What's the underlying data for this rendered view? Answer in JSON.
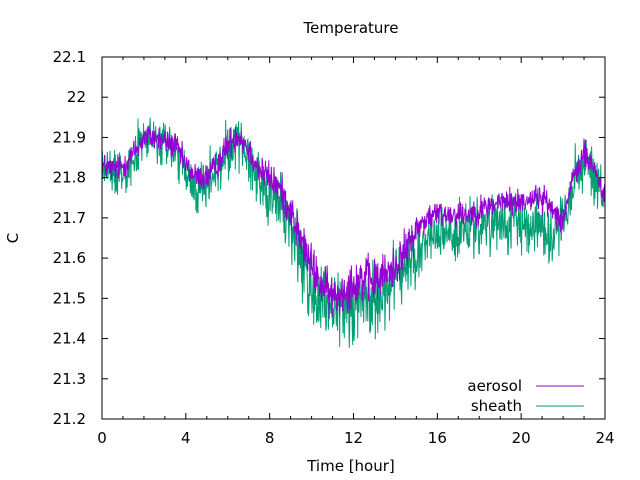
{
  "chart_data": {
    "type": "line",
    "title": "Temperature",
    "xlabel": "Time [hour]",
    "ylabel": "C",
    "xlim": [
      0,
      24
    ],
    "ylim": [
      21.2,
      22.1
    ],
    "x_ticks": [
      0,
      4,
      8,
      12,
      16,
      20,
      24
    ],
    "y_ticks": [
      21.2,
      21.3,
      21.4,
      21.5,
      21.6,
      21.7,
      21.8,
      21.9,
      22.0,
      22.1
    ],
    "x_tick_labels": [
      "0",
      "4",
      "8",
      "12",
      "16",
      "20",
      "24"
    ],
    "y_tick_labels": [
      "21.2",
      "21.3",
      "21.4",
      "21.5",
      "21.6",
      "21.7",
      "21.8",
      "21.9",
      "22",
      "22.1"
    ],
    "grid": false,
    "legend_position": "bottom-right",
    "series": [
      {
        "name": "aerosol",
        "color": "#9400d3",
        "trend": [
          [
            0,
            21.83
          ],
          [
            0.5,
            21.82
          ],
          [
            1,
            21.83
          ],
          [
            1.5,
            21.86
          ],
          [
            2,
            21.9
          ],
          [
            2.5,
            21.9
          ],
          [
            3,
            21.89
          ],
          [
            3.5,
            21.88
          ],
          [
            4,
            21.83
          ],
          [
            4.5,
            21.8
          ],
          [
            5,
            21.8
          ],
          [
            5.5,
            21.83
          ],
          [
            6,
            21.88
          ],
          [
            6.5,
            21.91
          ],
          [
            7,
            21.87
          ],
          [
            7.5,
            21.82
          ],
          [
            8,
            21.8
          ],
          [
            8.5,
            21.77
          ],
          [
            9,
            21.72
          ],
          [
            9.5,
            21.64
          ],
          [
            10,
            21.58
          ],
          [
            10.5,
            21.53
          ],
          [
            11,
            21.5
          ],
          [
            11.5,
            21.52
          ],
          [
            12,
            21.54
          ],
          [
            12.5,
            21.55
          ],
          [
            13,
            21.54
          ],
          [
            13.5,
            21.56
          ],
          [
            14,
            21.58
          ],
          [
            14.5,
            21.62
          ],
          [
            15,
            21.67
          ],
          [
            15.5,
            21.7
          ],
          [
            16,
            21.71
          ],
          [
            16.5,
            21.71
          ],
          [
            17,
            21.71
          ],
          [
            17.5,
            21.71
          ],
          [
            18,
            21.72
          ],
          [
            18.5,
            21.73
          ],
          [
            19,
            21.74
          ],
          [
            19.5,
            21.74
          ],
          [
            20,
            21.74
          ],
          [
            20.5,
            21.75
          ],
          [
            21,
            21.75
          ],
          [
            21.5,
            21.72
          ],
          [
            22,
            21.7
          ],
          [
            22.5,
            21.8
          ],
          [
            23,
            21.86
          ],
          [
            23.5,
            21.82
          ],
          [
            24,
            21.75
          ]
        ],
        "spread": [
          [
            0,
            0.05
          ],
          [
            4,
            0.05
          ],
          [
            8,
            0.06
          ],
          [
            9.5,
            0.08
          ],
          [
            12,
            0.09
          ],
          [
            14,
            0.08
          ],
          [
            16,
            0.05
          ],
          [
            24,
            0.05
          ]
        ]
      },
      {
        "name": "sheath",
        "color": "#009e73",
        "trend": [
          [
            0,
            21.83
          ],
          [
            0.5,
            21.81
          ],
          [
            1,
            21.82
          ],
          [
            1.5,
            21.85
          ],
          [
            2,
            21.9
          ],
          [
            2.5,
            21.89
          ],
          [
            3,
            21.88
          ],
          [
            3.5,
            21.87
          ],
          [
            4,
            21.8
          ],
          [
            4.5,
            21.77
          ],
          [
            5,
            21.78
          ],
          [
            5.5,
            21.82
          ],
          [
            6,
            21.87
          ],
          [
            6.5,
            21.9
          ],
          [
            7,
            21.85
          ],
          [
            7.5,
            21.8
          ],
          [
            8,
            21.76
          ],
          [
            8.5,
            21.73
          ],
          [
            9,
            21.68
          ],
          [
            9.5,
            21.6
          ],
          [
            10,
            21.52
          ],
          [
            10.5,
            21.48
          ],
          [
            11,
            21.45
          ],
          [
            11.5,
            21.47
          ],
          [
            12,
            21.5
          ],
          [
            12.5,
            21.5
          ],
          [
            13,
            21.5
          ],
          [
            13.5,
            21.52
          ],
          [
            14,
            21.55
          ],
          [
            14.5,
            21.58
          ],
          [
            15,
            21.6
          ],
          [
            15.5,
            21.64
          ],
          [
            16,
            21.66
          ],
          [
            16.5,
            21.66
          ],
          [
            17,
            21.66
          ],
          [
            17.5,
            21.67
          ],
          [
            18,
            21.67
          ],
          [
            18.5,
            21.68
          ],
          [
            19,
            21.68
          ],
          [
            19.5,
            21.68
          ],
          [
            20,
            21.69
          ],
          [
            20.5,
            21.69
          ],
          [
            21,
            21.68
          ],
          [
            21.5,
            21.66
          ],
          [
            22,
            21.7
          ],
          [
            22.5,
            21.78
          ],
          [
            23,
            21.84
          ],
          [
            23.5,
            21.8
          ],
          [
            24,
            21.73
          ]
        ],
        "spread": [
          [
            0,
            0.08
          ],
          [
            4,
            0.1
          ],
          [
            8,
            0.11
          ],
          [
            9.5,
            0.15
          ],
          [
            11,
            0.17
          ],
          [
            12,
            0.16
          ],
          [
            14,
            0.13
          ],
          [
            16,
            0.1
          ],
          [
            24,
            0.1
          ]
        ]
      }
    ]
  }
}
